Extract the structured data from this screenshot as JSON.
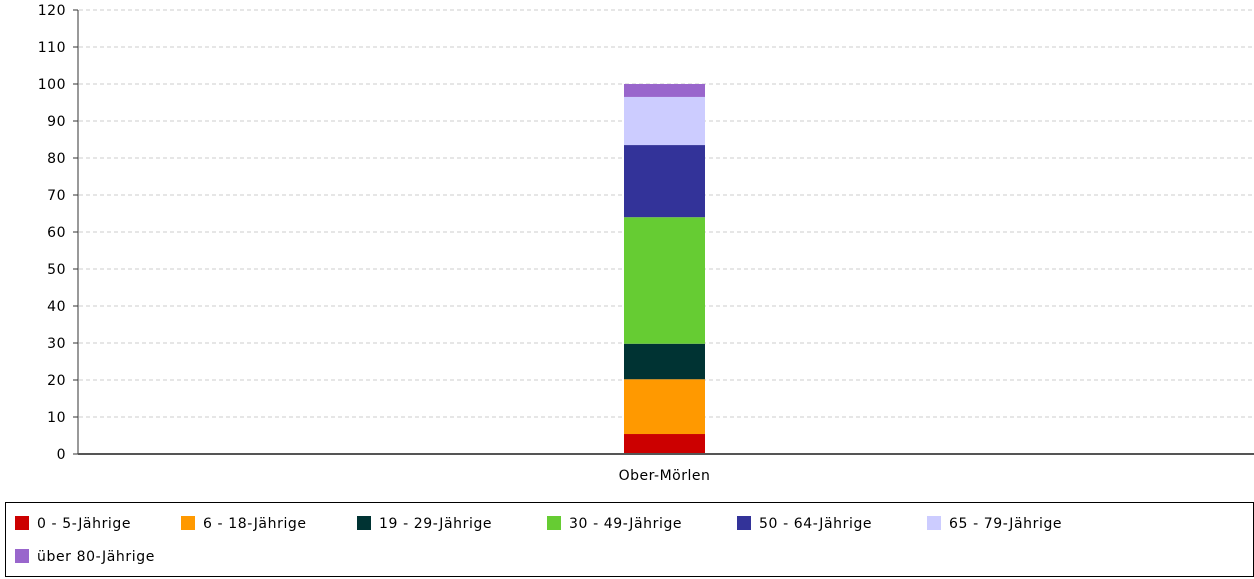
{
  "chart_data": {
    "type": "bar",
    "stacked": true,
    "categories": [
      "Ober-Mörlen"
    ],
    "series": [
      {
        "name": "0 - 5-Jährige",
        "values": [
          5.4
        ],
        "color": "#cc0000"
      },
      {
        "name": "6 - 18-Jährige",
        "values": [
          14.8
        ],
        "color": "#ff9900"
      },
      {
        "name": "19 - 29-Jährige",
        "values": [
          9.6
        ],
        "color": "#003333"
      },
      {
        "name": "30 - 49-Jährige",
        "values": [
          34.2
        ],
        "color": "#66cc33"
      },
      {
        "name": "50 - 64-Jährige",
        "values": [
          19.5
        ],
        "color": "#333399"
      },
      {
        "name": "65 - 79-Jährige",
        "values": [
          13.0
        ],
        "color": "#ccccff"
      },
      {
        "name": "über 80-Jährige",
        "values": [
          3.5
        ],
        "color": "#9966cc"
      }
    ],
    "ylim": [
      0,
      120
    ],
    "yticks": [
      0,
      10,
      20,
      30,
      40,
      50,
      60,
      70,
      80,
      90,
      100,
      110,
      120
    ],
    "title": "",
    "xlabel": "",
    "ylabel": "",
    "grid": true,
    "legend_position": "bottom"
  }
}
